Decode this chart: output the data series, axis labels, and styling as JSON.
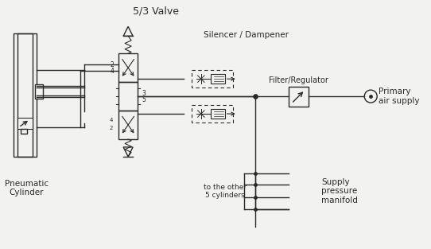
{
  "bg_color": "#f2f2f0",
  "line_color": "#2a2a2a",
  "title": "5/3 Valve",
  "lbl_cylinder": "Pneumatic\nCylinder",
  "lbl_silencer": "Silencer / Dampener",
  "lbl_filter": "Filter/Regulator",
  "lbl_primary": "Primary\nair supply",
  "lbl_supply": "Supply\npressure\nmanifold",
  "lbl_to_other": "to the other\n5 cylinders",
  "figsize": [
    5.42,
    3.13
  ],
  "dpi": 100
}
